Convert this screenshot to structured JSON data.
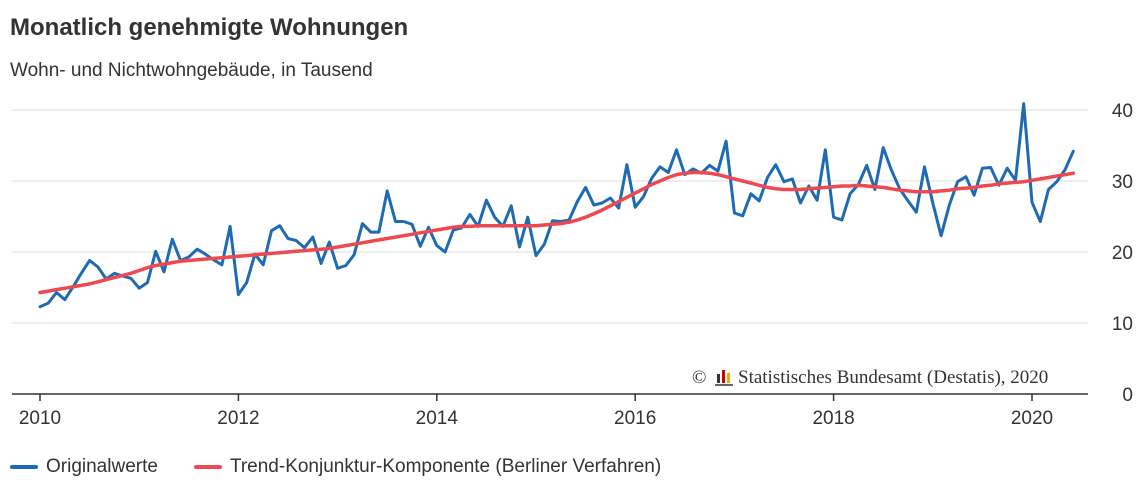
{
  "chart_data": {
    "type": "line",
    "title": "Monatlich genehmigte Wohnungen",
    "subtitle": "Wohn- und Nichtwohngebäude, in Tausend",
    "credit": "Statistisches Bundesamt (Destatis), 2020",
    "copyright_symbol": "©",
    "x_axis": {
      "ticks": [
        "2010",
        "2012",
        "2014",
        "2016",
        "2018",
        "2020"
      ],
      "range": [
        2010.0,
        2020.5
      ]
    },
    "y_axis": {
      "ticks": [
        "0",
        "10",
        "20",
        "30",
        "40"
      ],
      "range": [
        0,
        40
      ],
      "position": "right"
    },
    "grid": true,
    "legend_placement": "bottom",
    "colors": {
      "original": "#1f6bb3",
      "trend": "#ef4950",
      "grid": "#dddddd",
      "axis": "#333333"
    },
    "x_start": 2010.0,
    "x_step_months": 1,
    "series": [
      {
        "name": "Originalwerte",
        "values": [
          12.3,
          12.8,
          14.3,
          13.3,
          15.1,
          17.0,
          18.8,
          17.9,
          16.2,
          17.0,
          16.6,
          16.3,
          14.9,
          15.7,
          20.1,
          17.2,
          21.8,
          18.8,
          19.3,
          20.4,
          19.7,
          18.9,
          18.2,
          23.6,
          14.0,
          15.7,
          19.7,
          18.2,
          23.0,
          23.7,
          21.9,
          21.6,
          20.6,
          22.1,
          18.4,
          21.4,
          17.7,
          18.1,
          19.6,
          24.0,
          22.8,
          22.8,
          28.6,
          24.3,
          24.3,
          23.9,
          20.8,
          23.5,
          20.9,
          20.0,
          23.1,
          23.4,
          25.3,
          23.6,
          27.3,
          24.9,
          23.6,
          26.5,
          20.7,
          24.9,
          19.5,
          21.1,
          24.4,
          24.3,
          24.5,
          27.1,
          29.1,
          26.6,
          26.9,
          27.6,
          26.2,
          32.3,
          26.3,
          27.8,
          30.4,
          32.0,
          31.2,
          34.4,
          30.9,
          31.7,
          31.1,
          32.2,
          31.4,
          35.6,
          25.5,
          25.1,
          28.2,
          27.2,
          30.5,
          32.3,
          29.9,
          30.3,
          26.9,
          29.3,
          27.3,
          34.4,
          24.9,
          24.5,
          28.2,
          29.5,
          32.2,
          28.8,
          34.7,
          31.5,
          28.9,
          27.2,
          25.6,
          32.0,
          26.9,
          22.3,
          26.6,
          29.9,
          30.6,
          28.0,
          31.8,
          31.9,
          29.4,
          31.8,
          30.1,
          40.9,
          27.0,
          24.3,
          28.8,
          29.9,
          31.6,
          34.2
        ]
      },
      {
        "name": "Trend-Konjunktur-Komponente (Berliner Verfahren)",
        "values": [
          14.3,
          14.5,
          14.7,
          14.9,
          15.1,
          15.3,
          15.5,
          15.8,
          16.1,
          16.4,
          16.7,
          17.0,
          17.4,
          17.8,
          18.1,
          18.3,
          18.5,
          18.7,
          18.8,
          18.9,
          19.0,
          19.1,
          19.2,
          19.3,
          19.4,
          19.5,
          19.6,
          19.7,
          19.8,
          19.9,
          20.0,
          20.1,
          20.2,
          20.3,
          20.4,
          20.5,
          20.7,
          20.9,
          21.1,
          21.3,
          21.5,
          21.7,
          21.9,
          22.1,
          22.3,
          22.5,
          22.7,
          22.9,
          23.1,
          23.3,
          23.5,
          23.6,
          23.6,
          23.7,
          23.7,
          23.7,
          23.7,
          23.7,
          23.7,
          23.7,
          23.7,
          23.8,
          23.9,
          24.0,
          24.2,
          24.5,
          24.9,
          25.4,
          25.9,
          26.5,
          27.1,
          27.7,
          28.3,
          28.9,
          29.5,
          30.0,
          30.5,
          30.9,
          31.1,
          31.2,
          31.2,
          31.1,
          30.9,
          30.6,
          30.3,
          30.0,
          29.7,
          29.4,
          29.1,
          28.9,
          28.8,
          28.8,
          28.8,
          28.9,
          29.0,
          29.1,
          29.2,
          29.3,
          29.3,
          29.4,
          29.3,
          29.2,
          29.1,
          28.9,
          28.7,
          28.6,
          28.5,
          28.5,
          28.5,
          28.6,
          28.7,
          28.9,
          29.0,
          29.1,
          29.3,
          29.4,
          29.6,
          29.7,
          29.8,
          29.9,
          30.1,
          30.3,
          30.5,
          30.7,
          30.9,
          31.1
        ]
      }
    ]
  }
}
